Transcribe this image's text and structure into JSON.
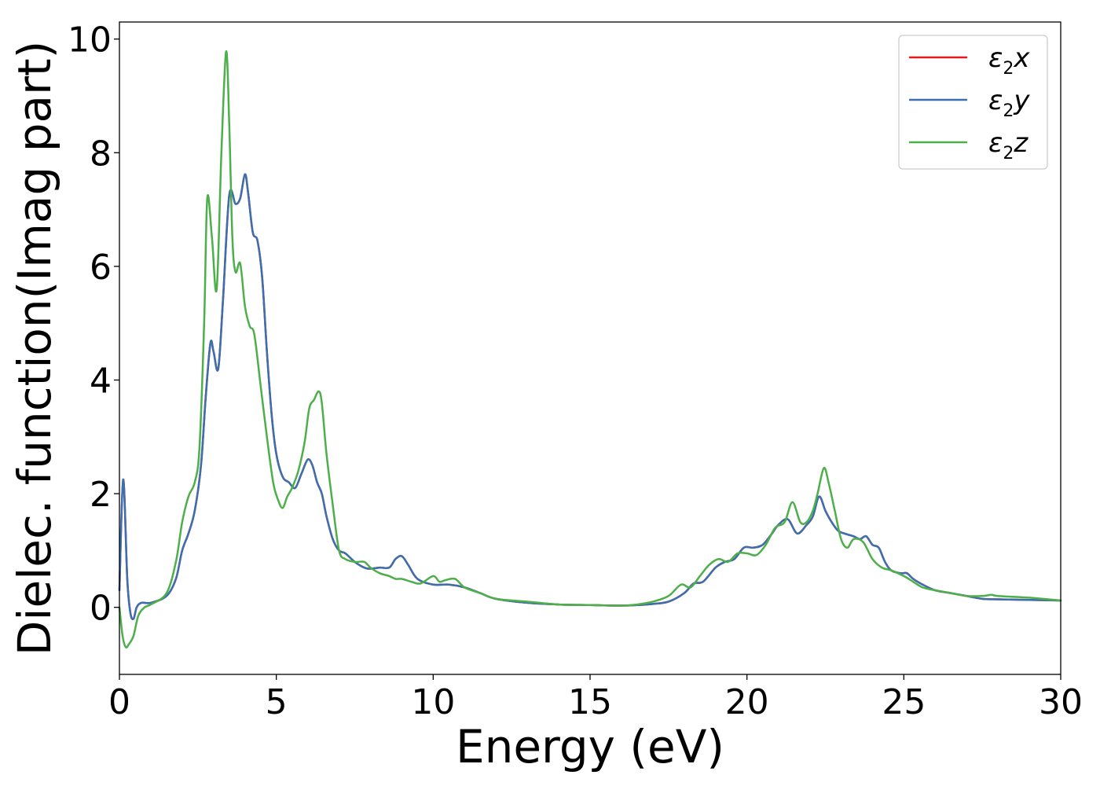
{
  "chart_data": {
    "type": "line",
    "title": "",
    "xlabel": "Energy (eV)",
    "ylabel": "Dielec. function(Imag part)",
    "xlim": [
      0,
      30
    ],
    "ylim": [
      -1.18,
      10.3
    ],
    "xticks": [
      0,
      5,
      10,
      15,
      20,
      25,
      30
    ],
    "xtick_labels": [
      "0",
      "5",
      "10",
      "15",
      "20",
      "25",
      "30"
    ],
    "yticks": [
      0,
      2,
      4,
      6,
      8,
      10
    ],
    "ytick_labels": [
      "0",
      "2",
      "4",
      "6",
      "8",
      "10"
    ],
    "grid": false,
    "legend_position": "top-right",
    "series": [
      {
        "name": "ε2x",
        "legend_base": "ε",
        "legend_sub": "2",
        "legend_suffix": "x",
        "color": "#e41a1c",
        "x": [
          0,
          0.12,
          0.25,
          0.35,
          0.45,
          0.55,
          0.7,
          1.0,
          1.5,
          1.8,
          2.0,
          2.2,
          2.4,
          2.6,
          2.75,
          2.9,
          3.0,
          3.15,
          3.3,
          3.5,
          3.7,
          3.85,
          4.0,
          4.1,
          4.25,
          4.4,
          4.55,
          4.7,
          4.85,
          5.0,
          5.2,
          5.4,
          5.6,
          5.8,
          6.0,
          6.15,
          6.3,
          6.45,
          6.6,
          6.8,
          7.0,
          7.2,
          7.5,
          7.8,
          8.0,
          8.3,
          8.6,
          8.8,
          9.0,
          9.2,
          9.5,
          10.0,
          10.5,
          11.0,
          11.5,
          12.0,
          13.0,
          14.0,
          15.0,
          16.0,
          16.5,
          17.0,
          17.5,
          18.0,
          18.3,
          18.6,
          19.0,
          19.3,
          19.6,
          19.9,
          20.2,
          20.5,
          20.8,
          21.0,
          21.3,
          21.6,
          21.9,
          22.1,
          22.3,
          22.5,
          22.7,
          22.9,
          23.1,
          23.4,
          23.6,
          23.8,
          24.0,
          24.2,
          24.4,
          24.6,
          24.9,
          25.1,
          25.3,
          25.6,
          26.0,
          26.5,
          27.0,
          27.5,
          28.0,
          29.0,
          30.0
        ],
        "y": [
          0.3,
          2.25,
          0.5,
          -0.1,
          -0.2,
          0.0,
          0.08,
          0.08,
          0.2,
          0.5,
          1.0,
          1.3,
          1.7,
          2.5,
          3.7,
          4.65,
          4.5,
          4.2,
          5.4,
          7.25,
          7.1,
          7.2,
          7.62,
          7.3,
          6.6,
          6.45,
          5.8,
          4.5,
          3.4,
          2.7,
          2.3,
          2.2,
          2.1,
          2.35,
          2.6,
          2.5,
          2.2,
          2.0,
          1.6,
          1.2,
          1.0,
          0.95,
          0.8,
          0.7,
          0.68,
          0.7,
          0.7,
          0.85,
          0.9,
          0.75,
          0.5,
          0.4,
          0.4,
          0.35,
          0.25,
          0.15,
          0.08,
          0.05,
          0.04,
          0.03,
          0.04,
          0.06,
          0.1,
          0.25,
          0.42,
          0.45,
          0.7,
          0.8,
          0.85,
          1.05,
          1.05,
          1.1,
          1.3,
          1.45,
          1.55,
          1.3,
          1.45,
          1.6,
          1.95,
          1.7,
          1.5,
          1.35,
          1.3,
          1.25,
          1.2,
          1.25,
          1.1,
          1.05,
          0.8,
          0.65,
          0.6,
          0.6,
          0.5,
          0.4,
          0.3,
          0.25,
          0.2,
          0.15,
          0.14,
          0.13,
          0.12
        ]
      },
      {
        "name": "ε2y",
        "legend_base": "ε",
        "legend_sub": "2",
        "legend_suffix": "y",
        "color": "#3a6fb0",
        "x": [
          0,
          0.12,
          0.25,
          0.35,
          0.45,
          0.55,
          0.7,
          1.0,
          1.5,
          1.8,
          2.0,
          2.2,
          2.4,
          2.6,
          2.75,
          2.9,
          3.0,
          3.15,
          3.3,
          3.5,
          3.7,
          3.85,
          4.0,
          4.1,
          4.25,
          4.4,
          4.55,
          4.7,
          4.85,
          5.0,
          5.2,
          5.4,
          5.6,
          5.8,
          6.0,
          6.15,
          6.3,
          6.45,
          6.6,
          6.8,
          7.0,
          7.2,
          7.5,
          7.8,
          8.0,
          8.3,
          8.6,
          8.8,
          9.0,
          9.2,
          9.5,
          10.0,
          10.5,
          11.0,
          11.5,
          12.0,
          13.0,
          14.0,
          15.0,
          16.0,
          16.5,
          17.0,
          17.5,
          18.0,
          18.3,
          18.6,
          19.0,
          19.3,
          19.6,
          19.9,
          20.2,
          20.5,
          20.8,
          21.0,
          21.3,
          21.6,
          21.9,
          22.1,
          22.3,
          22.5,
          22.7,
          22.9,
          23.1,
          23.4,
          23.6,
          23.8,
          24.0,
          24.2,
          24.4,
          24.6,
          24.9,
          25.1,
          25.3,
          25.6,
          26.0,
          26.5,
          27.0,
          27.5,
          28.0,
          29.0,
          30.0
        ],
        "y": [
          0.3,
          2.25,
          0.5,
          -0.1,
          -0.2,
          0.0,
          0.08,
          0.08,
          0.2,
          0.5,
          1.0,
          1.3,
          1.7,
          2.5,
          3.7,
          4.65,
          4.5,
          4.2,
          5.4,
          7.25,
          7.1,
          7.2,
          7.62,
          7.3,
          6.6,
          6.45,
          5.8,
          4.5,
          3.4,
          2.7,
          2.3,
          2.2,
          2.1,
          2.35,
          2.6,
          2.5,
          2.2,
          2.0,
          1.6,
          1.2,
          1.0,
          0.95,
          0.8,
          0.7,
          0.68,
          0.7,
          0.7,
          0.85,
          0.9,
          0.75,
          0.5,
          0.4,
          0.4,
          0.35,
          0.25,
          0.15,
          0.08,
          0.05,
          0.04,
          0.03,
          0.04,
          0.06,
          0.1,
          0.25,
          0.42,
          0.45,
          0.7,
          0.8,
          0.85,
          1.05,
          1.05,
          1.1,
          1.3,
          1.45,
          1.55,
          1.3,
          1.45,
          1.6,
          1.95,
          1.7,
          1.5,
          1.35,
          1.3,
          1.25,
          1.2,
          1.25,
          1.1,
          1.05,
          0.8,
          0.65,
          0.6,
          0.6,
          0.5,
          0.4,
          0.3,
          0.25,
          0.2,
          0.15,
          0.14,
          0.13,
          0.12
        ]
      },
      {
        "name": "ε2z",
        "legend_base": "ε",
        "legend_sub": "2",
        "legend_suffix": "z",
        "color": "#4daf4a",
        "x": [
          0,
          0.1,
          0.2,
          0.3,
          0.45,
          0.6,
          0.8,
          1.0,
          1.5,
          1.8,
          2.0,
          2.2,
          2.4,
          2.55,
          2.7,
          2.8,
          2.95,
          3.1,
          3.25,
          3.4,
          3.5,
          3.6,
          3.7,
          3.85,
          4.0,
          4.15,
          4.3,
          4.5,
          4.7,
          4.9,
          5.05,
          5.2,
          5.35,
          5.5,
          5.7,
          5.9,
          6.05,
          6.2,
          6.35,
          6.45,
          6.6,
          6.8,
          7.0,
          7.2,
          7.5,
          7.8,
          8.0,
          8.3,
          8.6,
          8.8,
          9.0,
          9.3,
          9.6,
          10.0,
          10.2,
          10.4,
          10.7,
          11.0,
          11.5,
          12.0,
          13.0,
          14.0,
          15.0,
          16.0,
          16.5,
          17.0,
          17.5,
          17.9,
          18.2,
          18.5,
          18.8,
          19.1,
          19.4,
          19.7,
          20.0,
          20.3,
          20.6,
          20.9,
          21.2,
          21.45,
          21.7,
          21.9,
          22.1,
          22.25,
          22.45,
          22.6,
          22.8,
          23.0,
          23.2,
          23.4,
          23.7,
          24.0,
          24.3,
          24.6,
          25.0,
          25.3,
          25.6,
          26.0,
          26.5,
          27.0,
          27.5,
          27.8,
          28.0,
          29.0,
          30.0
        ],
        "y": [
          0.0,
          -0.5,
          -0.7,
          -0.65,
          -0.5,
          -0.15,
          0.0,
          0.05,
          0.25,
          0.8,
          1.5,
          1.95,
          2.2,
          2.8,
          5.0,
          7.2,
          6.5,
          5.6,
          8.0,
          9.78,
          8.5,
          6.5,
          5.9,
          6.05,
          5.3,
          4.95,
          4.8,
          3.9,
          3.0,
          2.2,
          1.9,
          1.75,
          1.95,
          2.1,
          2.4,
          2.9,
          3.5,
          3.65,
          3.8,
          3.6,
          2.7,
          1.8,
          1.0,
          0.85,
          0.8,
          0.8,
          0.7,
          0.6,
          0.55,
          0.5,
          0.5,
          0.45,
          0.42,
          0.55,
          0.45,
          0.48,
          0.5,
          0.35,
          0.25,
          0.15,
          0.1,
          0.05,
          0.04,
          0.03,
          0.05,
          0.1,
          0.2,
          0.4,
          0.35,
          0.55,
          0.75,
          0.85,
          0.8,
          0.95,
          0.95,
          0.92,
          1.1,
          1.4,
          1.5,
          1.85,
          1.5,
          1.5,
          1.7,
          2.0,
          2.45,
          2.2,
          1.7,
          1.2,
          1.05,
          1.2,
          1.15,
          0.85,
          0.7,
          0.65,
          0.55,
          0.45,
          0.35,
          0.3,
          0.25,
          0.2,
          0.2,
          0.22,
          0.2,
          0.17,
          0.12
        ]
      }
    ]
  }
}
